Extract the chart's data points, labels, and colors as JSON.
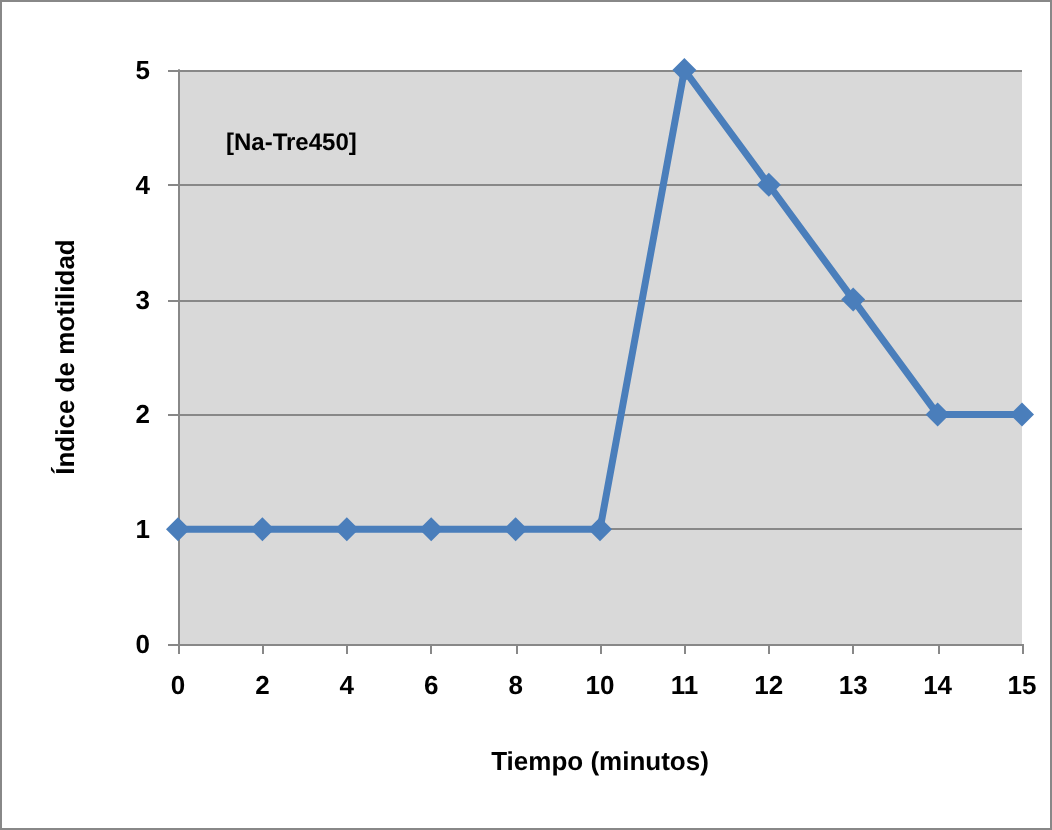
{
  "chart_data": {
    "type": "line",
    "xlabel": "Tiempo (minutos)",
    "ylabel": "Índice de motilidad",
    "annotations": [
      "[Na-Tre450]"
    ],
    "categories": [
      "0",
      "2",
      "4",
      "6",
      "8",
      "10",
      "11",
      "12",
      "13",
      "14",
      "15"
    ],
    "series": [
      {
        "color": "#4a7ebb",
        "values": [
          1,
          1,
          1,
          1,
          1,
          1,
          5,
          4,
          3,
          2,
          2
        ]
      }
    ],
    "ylim": [
      0,
      5
    ],
    "yticks": [
      0,
      1,
      2,
      3,
      4,
      5
    ],
    "grid": "y",
    "marker": "diamond",
    "line_style": "solid"
  }
}
